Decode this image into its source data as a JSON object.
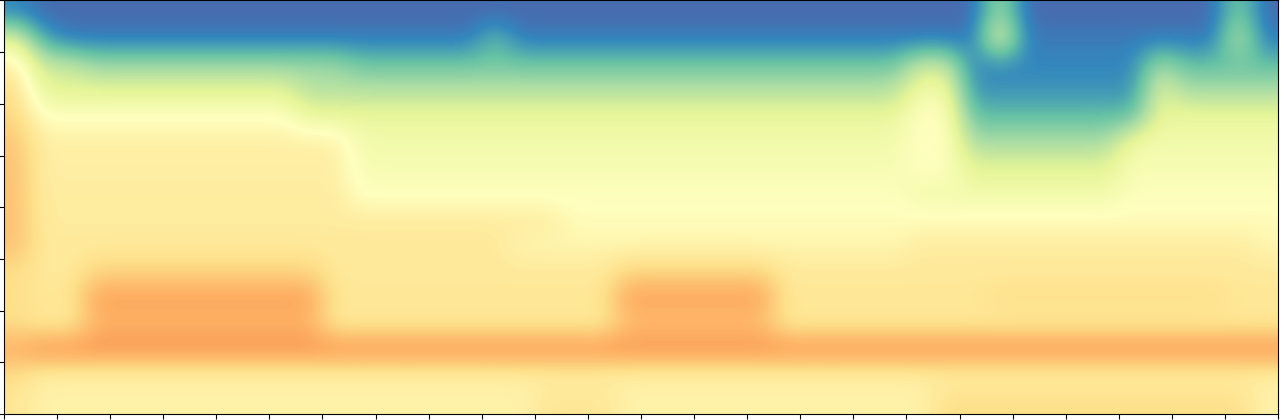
{
  "chart_data": {
    "type": "heatmap",
    "color": "Spectral_r",
    "color_range": [
      0,
      1
    ],
    "xlim": [
      0,
      24
    ],
    "xticks": [
      0,
      1,
      2,
      3,
      4,
      5,
      6,
      7,
      8,
      9,
      10,
      11,
      12,
      13,
      14,
      15,
      16,
      17,
      18,
      19,
      20,
      21,
      22,
      23,
      24
    ],
    "ylim": [
      0,
      8
    ],
    "yticks": [
      0,
      1,
      2,
      3,
      4,
      5,
      6,
      7,
      8
    ],
    "tick_labels": false,
    "cells": [
      [
        0.1,
        0.05,
        0.05,
        0.05,
        0.05,
        0.05,
        0.05,
        0.05,
        0.05,
        0.05,
        0.05,
        0.05,
        0.05,
        0.05,
        0.05,
        0.05,
        0.05,
        0.05,
        0.05,
        0.05,
        0.05,
        0.05,
        0.05,
        0.05,
        0.05,
        0.05,
        0.05,
        0.05,
        0.05,
        0.05,
        0.05,
        0.05,
        0.05,
        0.05,
        0.05,
        0.05,
        0.05,
        0.3,
        0.05,
        0.05,
        0.05,
        0.05,
        0.05,
        0.05,
        0.05,
        0.05,
        0.25,
        0.05
      ],
      [
        0.4,
        0.15,
        0.08,
        0.08,
        0.08,
        0.08,
        0.08,
        0.08,
        0.08,
        0.08,
        0.08,
        0.08,
        0.08,
        0.08,
        0.08,
        0.08,
        0.08,
        0.08,
        0.2,
        0.08,
        0.08,
        0.08,
        0.08,
        0.08,
        0.08,
        0.08,
        0.08,
        0.08,
        0.08,
        0.08,
        0.08,
        0.08,
        0.08,
        0.08,
        0.08,
        0.08,
        0.08,
        0.45,
        0.08,
        0.08,
        0.08,
        0.08,
        0.08,
        0.08,
        0.08,
        0.08,
        0.35,
        0.08
      ],
      [
        0.55,
        0.35,
        0.35,
        0.28,
        0.28,
        0.28,
        0.28,
        0.28,
        0.28,
        0.28,
        0.28,
        0.28,
        0.28,
        0.22,
        0.22,
        0.22,
        0.22,
        0.22,
        0.22,
        0.22,
        0.22,
        0.22,
        0.22,
        0.22,
        0.22,
        0.22,
        0.22,
        0.22,
        0.22,
        0.22,
        0.22,
        0.22,
        0.22,
        0.22,
        0.35,
        0.35,
        0.1,
        0.1,
        0.1,
        0.1,
        0.1,
        0.1,
        0.1,
        0.3,
        0.2,
        0.2,
        0.2,
        0.2
      ],
      [
        0.6,
        0.4,
        0.4,
        0.4,
        0.4,
        0.4,
        0.4,
        0.4,
        0.4,
        0.4,
        0.4,
        0.32,
        0.32,
        0.32,
        0.32,
        0.32,
        0.32,
        0.32,
        0.32,
        0.32,
        0.32,
        0.32,
        0.32,
        0.32,
        0.32,
        0.32,
        0.32,
        0.32,
        0.32,
        0.32,
        0.32,
        0.32,
        0.32,
        0.32,
        0.45,
        0.45,
        0.12,
        0.12,
        0.12,
        0.12,
        0.12,
        0.12,
        0.12,
        0.4,
        0.3,
        0.3,
        0.3,
        0.3
      ],
      [
        0.62,
        0.5,
        0.5,
        0.5,
        0.5,
        0.5,
        0.5,
        0.5,
        0.5,
        0.5,
        0.5,
        0.42,
        0.42,
        0.42,
        0.42,
        0.42,
        0.42,
        0.42,
        0.42,
        0.42,
        0.42,
        0.42,
        0.42,
        0.42,
        0.42,
        0.42,
        0.42,
        0.42,
        0.42,
        0.42,
        0.42,
        0.42,
        0.42,
        0.42,
        0.5,
        0.5,
        0.2,
        0.2,
        0.2,
        0.2,
        0.2,
        0.2,
        0.2,
        0.42,
        0.42,
        0.42,
        0.42,
        0.42
      ],
      [
        0.65,
        0.55,
        0.55,
        0.55,
        0.55,
        0.55,
        0.55,
        0.55,
        0.55,
        0.55,
        0.55,
        0.55,
        0.55,
        0.45,
        0.45,
        0.45,
        0.45,
        0.45,
        0.45,
        0.45,
        0.45,
        0.45,
        0.45,
        0.45,
        0.45,
        0.45,
        0.45,
        0.45,
        0.45,
        0.45,
        0.45,
        0.45,
        0.45,
        0.45,
        0.5,
        0.5,
        0.3,
        0.3,
        0.3,
        0.3,
        0.3,
        0.3,
        0.45,
        0.45,
        0.45,
        0.45,
        0.45,
        0.45
      ],
      [
        0.66,
        0.55,
        0.55,
        0.55,
        0.55,
        0.55,
        0.55,
        0.55,
        0.55,
        0.55,
        0.55,
        0.55,
        0.55,
        0.47,
        0.47,
        0.47,
        0.47,
        0.47,
        0.47,
        0.47,
        0.47,
        0.47,
        0.47,
        0.47,
        0.47,
        0.47,
        0.47,
        0.47,
        0.47,
        0.47,
        0.47,
        0.47,
        0.47,
        0.47,
        0.5,
        0.5,
        0.4,
        0.4,
        0.4,
        0.4,
        0.4,
        0.4,
        0.47,
        0.47,
        0.47,
        0.47,
        0.47,
        0.47
      ],
      [
        0.66,
        0.56,
        0.56,
        0.56,
        0.56,
        0.56,
        0.56,
        0.56,
        0.56,
        0.56,
        0.56,
        0.56,
        0.56,
        0.49,
        0.49,
        0.49,
        0.49,
        0.49,
        0.49,
        0.49,
        0.49,
        0.49,
        0.49,
        0.49,
        0.49,
        0.49,
        0.49,
        0.49,
        0.49,
        0.49,
        0.49,
        0.49,
        0.49,
        0.49,
        0.45,
        0.45,
        0.45,
        0.45,
        0.45,
        0.45,
        0.45,
        0.45,
        0.49,
        0.49,
        0.49,
        0.49,
        0.49,
        0.49
      ],
      [
        0.66,
        0.56,
        0.56,
        0.56,
        0.56,
        0.56,
        0.56,
        0.56,
        0.56,
        0.56,
        0.56,
        0.56,
        0.56,
        0.56,
        0.56,
        0.56,
        0.56,
        0.56,
        0.56,
        0.56,
        0.56,
        0.51,
        0.51,
        0.51,
        0.51,
        0.51,
        0.51,
        0.51,
        0.51,
        0.51,
        0.51,
        0.51,
        0.51,
        0.51,
        0.51,
        0.51,
        0.51,
        0.51,
        0.51,
        0.51,
        0.51,
        0.51,
        0.51,
        0.51,
        0.51,
        0.51,
        0.51,
        0.51
      ],
      [
        0.66,
        0.57,
        0.57,
        0.57,
        0.57,
        0.57,
        0.57,
        0.57,
        0.57,
        0.57,
        0.57,
        0.57,
        0.57,
        0.57,
        0.57,
        0.57,
        0.57,
        0.57,
        0.57,
        0.53,
        0.53,
        0.53,
        0.53,
        0.53,
        0.53,
        0.53,
        0.53,
        0.53,
        0.53,
        0.53,
        0.53,
        0.53,
        0.53,
        0.53,
        0.56,
        0.56,
        0.56,
        0.56,
        0.56,
        0.56,
        0.56,
        0.56,
        0.56,
        0.56,
        0.56,
        0.56,
        0.56,
        0.53
      ],
      [
        0.6,
        0.57,
        0.57,
        0.62,
        0.62,
        0.62,
        0.62,
        0.62,
        0.62,
        0.62,
        0.62,
        0.62,
        0.57,
        0.57,
        0.57,
        0.57,
        0.57,
        0.57,
        0.57,
        0.57,
        0.57,
        0.57,
        0.57,
        0.62,
        0.62,
        0.62,
        0.62,
        0.62,
        0.62,
        0.57,
        0.57,
        0.57,
        0.57,
        0.57,
        0.57,
        0.57,
        0.57,
        0.57,
        0.57,
        0.57,
        0.57,
        0.57,
        0.57,
        0.57,
        0.57,
        0.57,
        0.57,
        0.57
      ],
      [
        0.6,
        0.58,
        0.58,
        0.72,
        0.72,
        0.72,
        0.72,
        0.72,
        0.72,
        0.72,
        0.72,
        0.72,
        0.58,
        0.58,
        0.58,
        0.58,
        0.58,
        0.58,
        0.58,
        0.58,
        0.58,
        0.58,
        0.58,
        0.72,
        0.72,
        0.72,
        0.72,
        0.72,
        0.72,
        0.58,
        0.58,
        0.58,
        0.58,
        0.58,
        0.58,
        0.58,
        0.58,
        0.6,
        0.6,
        0.6,
        0.6,
        0.6,
        0.6,
        0.6,
        0.6,
        0.6,
        0.58,
        0.58
      ],
      [
        0.6,
        0.57,
        0.57,
        0.68,
        0.68,
        0.68,
        0.68,
        0.68,
        0.68,
        0.68,
        0.68,
        0.68,
        0.57,
        0.57,
        0.57,
        0.57,
        0.57,
        0.57,
        0.57,
        0.57,
        0.57,
        0.57,
        0.57,
        0.66,
        0.66,
        0.66,
        0.66,
        0.66,
        0.66,
        0.57,
        0.57,
        0.57,
        0.57,
        0.57,
        0.57,
        0.57,
        0.57,
        0.57,
        0.57,
        0.57,
        0.57,
        0.57,
        0.57,
        0.57,
        0.57,
        0.57,
        0.57,
        0.57
      ],
      [
        0.7,
        0.75,
        0.75,
        0.75,
        0.75,
        0.75,
        0.75,
        0.75,
        0.75,
        0.75,
        0.75,
        0.75,
        0.75,
        0.75,
        0.75,
        0.75,
        0.75,
        0.75,
        0.75,
        0.75,
        0.75,
        0.75,
        0.75,
        0.75,
        0.75,
        0.75,
        0.75,
        0.75,
        0.75,
        0.75,
        0.75,
        0.75,
        0.75,
        0.75,
        0.75,
        0.75,
        0.75,
        0.75,
        0.75,
        0.75,
        0.75,
        0.75,
        0.75,
        0.75,
        0.75,
        0.75,
        0.75,
        0.75
      ],
      [
        0.6,
        0.55,
        0.55,
        0.55,
        0.55,
        0.55,
        0.55,
        0.55,
        0.55,
        0.55,
        0.55,
        0.55,
        0.55,
        0.55,
        0.55,
        0.55,
        0.55,
        0.55,
        0.55,
        0.55,
        0.55,
        0.55,
        0.55,
        0.55,
        0.55,
        0.55,
        0.55,
        0.55,
        0.55,
        0.55,
        0.55,
        0.55,
        0.55,
        0.55,
        0.55,
        0.55,
        0.55,
        0.55,
        0.55,
        0.55,
        0.55,
        0.55,
        0.55,
        0.55,
        0.55,
        0.55,
        0.55,
        0.55
      ],
      [
        0.58,
        0.54,
        0.54,
        0.54,
        0.54,
        0.54,
        0.54,
        0.54,
        0.54,
        0.54,
        0.54,
        0.54,
        0.54,
        0.54,
        0.54,
        0.54,
        0.54,
        0.54,
        0.54,
        0.54,
        0.58,
        0.58,
        0.58,
        0.54,
        0.54,
        0.54,
        0.54,
        0.54,
        0.54,
        0.54,
        0.54,
        0.54,
        0.54,
        0.54,
        0.54,
        0.6,
        0.6,
        0.6,
        0.6,
        0.6,
        0.6,
        0.6,
        0.6,
        0.6,
        0.6,
        0.6,
        0.6,
        0.54
      ]
    ]
  }
}
